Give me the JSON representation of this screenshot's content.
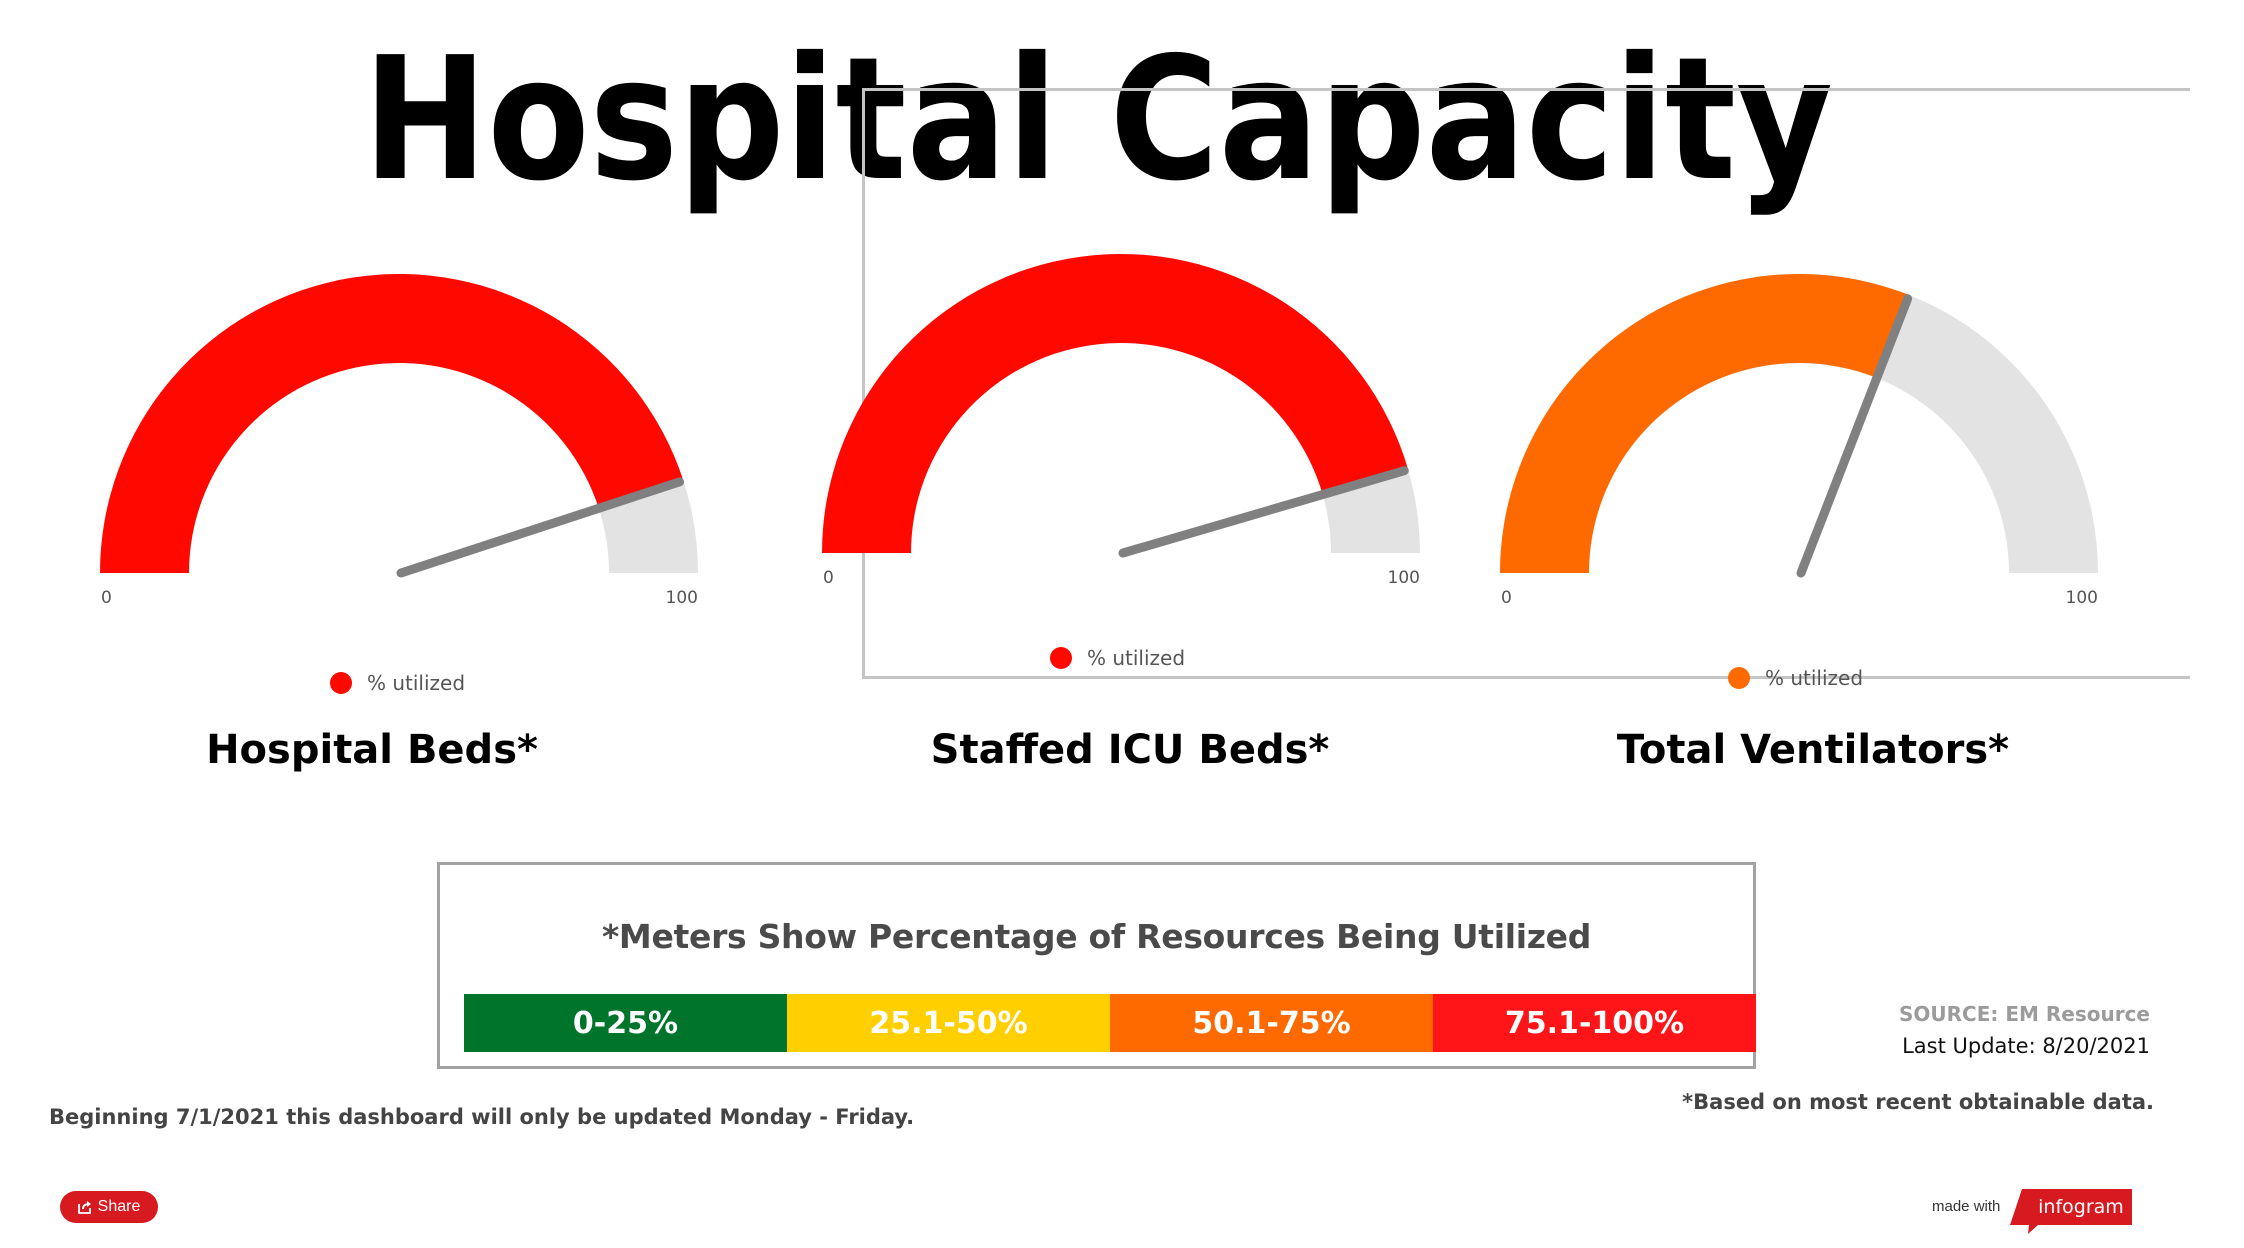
{
  "header": {
    "title": "Hospital Capacity"
  },
  "chart_data": [
    {
      "type": "gauge",
      "title": "Hospital Beds*",
      "series_name": "% utilized",
      "value": 90,
      "min": 0,
      "max": 100,
      "min_label": "0",
      "max_label": "100",
      "color": "#ff0800"
    },
    {
      "type": "gauge",
      "title": "Staffed ICU Beds*",
      "series_name": "% utilized",
      "value": 91,
      "min": 0,
      "max": 100,
      "min_label": "0",
      "max_label": "100",
      "color": "#ff0800"
    },
    {
      "type": "gauge",
      "title": "Total Ventilators*",
      "series_name": "% utilized",
      "value": 62,
      "min": 0,
      "max": 100,
      "min_label": "0",
      "max_label": "100",
      "color": "#ff6a00"
    }
  ],
  "gauge_style": {
    "track_color": "#e3e3e3",
    "needle_color": "#808080"
  },
  "legend": {
    "heading": "*Meters Show Percentage of Resources Being Utilized",
    "bands": [
      {
        "label": "0-25%",
        "color": "#00742b"
      },
      {
        "label": "25.1-50%",
        "color": "#ffcf00"
      },
      {
        "label": "50.1-75%",
        "color": "#ff6a00"
      },
      {
        "label": "75.1-100%",
        "color": "#ff1418"
      }
    ]
  },
  "footer": {
    "source": "SOURCE: EM Resource",
    "last_update": "Last Update: 8/20/2021",
    "based_on": "*Based on most recent obtainable data.",
    "notice": "Beginning 7/1/2021 this dashboard will only be updated Monday - Friday.",
    "share_label": "Share",
    "made_with": "made with",
    "brand": "infogram",
    "brand_color": "#d71a20"
  }
}
